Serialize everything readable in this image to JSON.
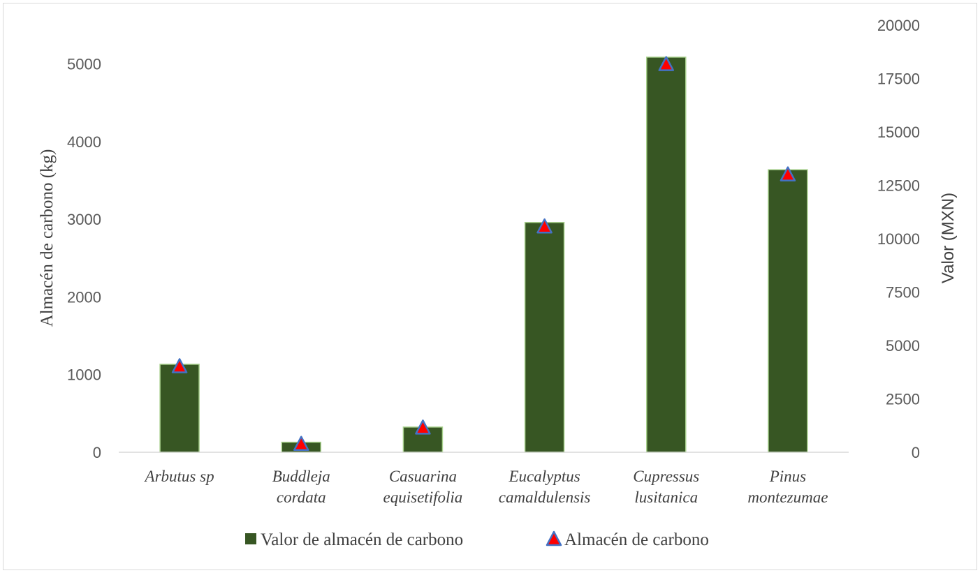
{
  "chart_data": {
    "type": "bar",
    "categories": [
      [
        "Arbutus sp"
      ],
      [
        "Buddleja",
        "cordata"
      ],
      [
        "Casuarina",
        "equisetifolia"
      ],
      [
        "Eucalyptus",
        "camaldulensis"
      ],
      [
        "Cupressus",
        "lusitanica"
      ],
      [
        "Pinus",
        "montezumae"
      ]
    ],
    "series": [
      {
        "name": "Valor de almacén de carbono",
        "type": "bar",
        "axis": "right",
        "color": "#375623",
        "values": [
          4120,
          470,
          1180,
          10760,
          18500,
          13230
        ]
      },
      {
        "name": "Almacén de carbono",
        "type": "marker-triangle",
        "axis": "left",
        "color": "#ff0000",
        "edge_color": "#4472c4",
        "values": [
          1110,
          110,
          320,
          2910,
          5000,
          3580
        ]
      }
    ],
    "ylabel_left": "Almacén de carbono (kg)",
    "ylabel_right": "Valor (MXN)",
    "left_ticks": [
      "0",
      "1000",
      "2000",
      "3000",
      "4000",
      "5000"
    ],
    "right_ticks": [
      "0",
      "2500",
      "5000",
      "7500",
      "10000",
      "12500",
      "15000",
      "17500",
      "20000"
    ],
    "ylim_left": [
      0,
      5500
    ],
    "ylim_right": [
      0,
      20000
    ],
    "grid": false,
    "legend_position": "bottom"
  }
}
